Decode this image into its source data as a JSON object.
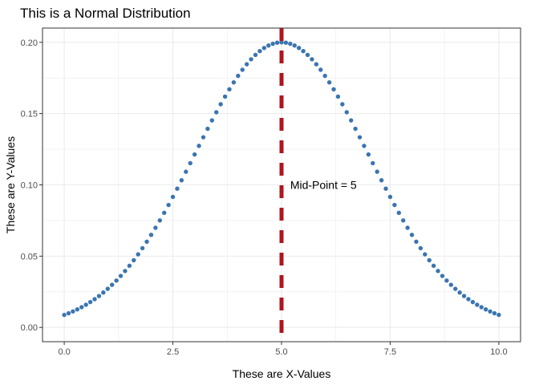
{
  "chart_data": {
    "type": "scatter",
    "title": "This is a Normal Distribution",
    "xlabel": "These are X-Values",
    "ylabel": "These are Y-Values",
    "xlim": [
      -0.5,
      10.5
    ],
    "ylim": [
      0.0,
      0.2
    ],
    "x_ticks": [
      0,
      2.5,
      5,
      7.5,
      10
    ],
    "x_tick_labels": [
      "0.0",
      "2.5",
      "5.0",
      "7.5",
      "10.0"
    ],
    "y_ticks": [
      0,
      0.05,
      0.1,
      0.15,
      0.2
    ],
    "y_tick_labels": [
      "0.00",
      "0.05",
      "0.10",
      "0.15",
      "0.20"
    ],
    "grid": true,
    "background": "#ffffff",
    "grid_color": "#ebebeb",
    "point_color": "#3a75b0",
    "series": [
      {
        "mean": 5,
        "sd": 2,
        "x_start": 0,
        "x_end": 10,
        "x_step": 0.1
      }
    ],
    "reference_line": {
      "x": 5,
      "style": "dashed",
      "color": "#b0151c"
    },
    "annotation": {
      "text": "Mid-Point = 5",
      "x": 5.2,
      "y": 0.1
    }
  }
}
